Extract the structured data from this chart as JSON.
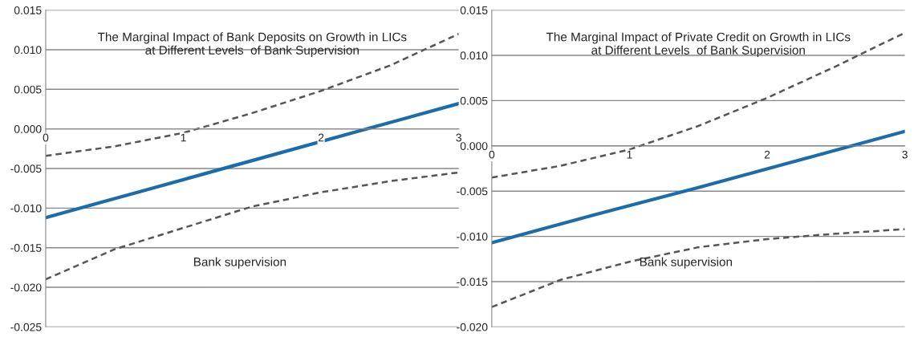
{
  "chart_data": [
    {
      "type": "line",
      "title": "The Marginal Impact of Bank Deposits on Growth in LICs\nat Different Levels  of Bank Supervision",
      "xlabel": "Bank supervision",
      "x": [
        0,
        0.5,
        1,
        1.5,
        2,
        2.5,
        3
      ],
      "series": [
        {
          "color": "#1b6cab",
          "line_style": "solid",
          "x": [
            0,
            0.75,
            1.5,
            2.25,
            3
          ],
          "values": [
            -0.0112,
            -0.0076,
            -0.004,
            -0.0004,
            0.0032
          ]
        },
        {
          "color": "#555555",
          "line_style": "dashed",
          "values": [
            -0.0034,
            -0.0022,
            -0.0005,
            0.002,
            0.0048,
            0.008,
            0.012
          ]
        },
        {
          "color": "#555555",
          "line_style": "dashed",
          "values": [
            -0.019,
            -0.0152,
            -0.0125,
            -0.0098,
            -0.008,
            -0.0066,
            -0.0055
          ]
        }
      ],
      "xlim": [
        0,
        3
      ],
      "xticks": [
        0,
        1,
        2,
        3
      ],
      "ylim": [
        -0.025,
        0.015
      ],
      "yticks": [
        {
          "value": -0.025,
          "label": "-0.025"
        },
        {
          "value": -0.02,
          "label": "-0.020"
        },
        {
          "value": -0.015,
          "label": "-0.015"
        },
        {
          "value": -0.01,
          "label": "-0.010"
        },
        {
          "value": -0.005,
          "label": "-0.005"
        },
        {
          "value": 0,
          "label": "0.000"
        },
        {
          "value": 0.005,
          "label": "0.005"
        },
        {
          "value": 0.01,
          "label": "0.010"
        },
        {
          "value": 0.015,
          "label": "0.015"
        }
      ],
      "grid": "y",
      "legend": false
    },
    {
      "type": "line",
      "title": "The Marginal Impact of Private Credit on Growth in LICs\nat Different Levels  of Bank Supervision",
      "xlabel": "Bank supervision",
      "x": [
        0,
        0.5,
        1,
        1.5,
        2,
        2.5,
        3
      ],
      "series": [
        {
          "color": "#1b6cab",
          "line_style": "solid",
          "x": [
            0,
            0.75,
            1.5,
            2.25,
            3
          ],
          "values": [
            -0.0107,
            -0.0076,
            -0.0046,
            -0.0015,
            0.0016
          ]
        },
        {
          "color": "#555555",
          "line_style": "dashed",
          "values": [
            -0.0035,
            -0.0022,
            -0.0004,
            0.0022,
            0.0053,
            0.0088,
            0.0125
          ]
        },
        {
          "color": "#555555",
          "line_style": "dashed",
          "values": [
            -0.0178,
            -0.0148,
            -0.0128,
            -0.0112,
            -0.0103,
            -0.0097,
            -0.0092
          ]
        }
      ],
      "xlim": [
        0,
        3
      ],
      "xticks": [
        0,
        1,
        2,
        3
      ],
      "ylim": [
        -0.02,
        0.015
      ],
      "yticks": [
        {
          "value": -0.02,
          "label": "-0.020"
        },
        {
          "value": -0.015,
          "label": "-0.015"
        },
        {
          "value": -0.01,
          "label": "-0.010"
        },
        {
          "value": -0.005,
          "label": "-0.005"
        },
        {
          "value": 0,
          "label": "0.000"
        },
        {
          "value": 0.005,
          "label": "0.005"
        },
        {
          "value": 0.01,
          "label": "0.010"
        },
        {
          "value": 0.015,
          "label": "0.015"
        }
      ],
      "grid": "y",
      "legend": false
    }
  ]
}
